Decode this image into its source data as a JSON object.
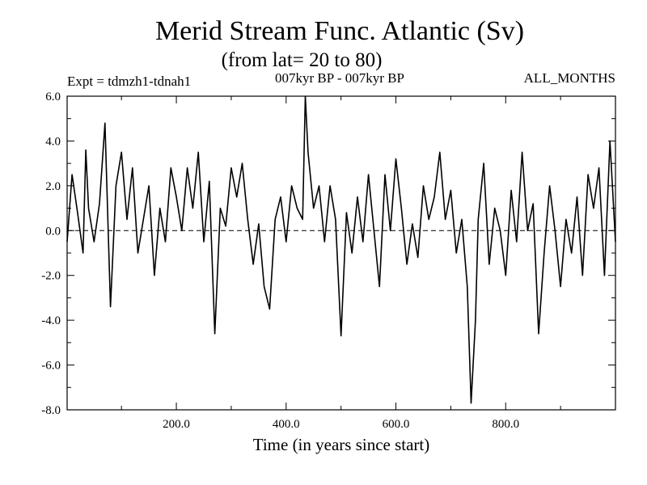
{
  "chart_data": {
    "type": "line",
    "title": "Merid Stream Func. Atlantic (Sv)",
    "subtitle": "(from lat= 20 to 80)",
    "experiment": "Expt = tdmzh1-tdnah1",
    "period": "007kyr BP - 007kyr BP",
    "season": "ALL_MONTHS",
    "xlabel": "Time (in years since start)",
    "ylabel": "",
    "xlim": [
      1,
      1000
    ],
    "ylim": [
      -8,
      6
    ],
    "x_ticks": [
      200,
      400,
      600,
      800
    ],
    "x_tick_labels": [
      "200.0",
      "400.0",
      "600.0",
      "800.0"
    ],
    "y_ticks": [
      6,
      4,
      2,
      0,
      -2,
      -4,
      -6,
      -8
    ],
    "y_tick_labels": [
      "6.0",
      "4.0",
      "2.0",
      "0.0",
      "-2.0",
      "-4.0",
      "-6.0",
      "-8.0"
    ],
    "zero_line": true,
    "grid": false,
    "series": [
      {
        "name": "Merid Stream Func. Atlantic",
        "x": [
          1,
          10,
          20,
          30,
          35,
          40,
          50,
          60,
          70,
          80,
          90,
          100,
          110,
          120,
          130,
          140,
          150,
          160,
          170,
          180,
          190,
          200,
          210,
          220,
          230,
          240,
          250,
          260,
          270,
          280,
          290,
          300,
          310,
          320,
          330,
          340,
          350,
          360,
          370,
          380,
          390,
          400,
          410,
          420,
          430,
          435,
          440,
          450,
          460,
          470,
          480,
          490,
          500,
          510,
          520,
          530,
          540,
          550,
          560,
          570,
          580,
          590,
          600,
          610,
          620,
          630,
          640,
          650,
          660,
          670,
          680,
          690,
          700,
          710,
          720,
          730,
          737,
          745,
          750,
          760,
          770,
          780,
          790,
          800,
          810,
          820,
          830,
          840,
          850,
          860,
          870,
          880,
          890,
          900,
          910,
          920,
          930,
          940,
          950,
          960,
          970,
          980,
          990,
          1000
        ],
        "values": [
          -0.5,
          2.5,
          0.8,
          -1.0,
          3.6,
          1.0,
          -0.5,
          1.2,
          4.8,
          -3.4,
          2.0,
          3.5,
          0.5,
          2.8,
          -1.0,
          0.5,
          2.0,
          -2.0,
          1.0,
          -0.5,
          2.8,
          1.5,
          0.0,
          2.8,
          1.0,
          3.5,
          -0.5,
          2.2,
          -4.6,
          1.0,
          0.2,
          2.8,
          1.5,
          3.0,
          0.5,
          -1.5,
          0.3,
          -2.5,
          -3.5,
          0.5,
          1.5,
          -0.5,
          2.0,
          1.0,
          0.5,
          6.0,
          3.5,
          1.0,
          2.0,
          -0.5,
          2.0,
          0.5,
          -4.7,
          0.8,
          -1.0,
          1.5,
          -0.5,
          2.5,
          0.0,
          -2.5,
          2.5,
          0.0,
          3.2,
          1.0,
          -1.5,
          0.3,
          -1.2,
          2.0,
          0.5,
          1.5,
          3.5,
          0.5,
          1.8,
          -1.0,
          0.5,
          -2.5,
          -7.7,
          -4.0,
          0.5,
          3.0,
          -1.5,
          1.0,
          0.0,
          -2.0,
          1.8,
          -0.5,
          3.5,
          0.0,
          1.2,
          -4.6,
          -1.0,
          2.0,
          0.0,
          -2.5,
          0.5,
          -1.0,
          1.5,
          -2.0,
          2.5,
          1.0,
          2.8,
          -2.0,
          4.0,
          -0.5
        ]
      }
    ]
  }
}
